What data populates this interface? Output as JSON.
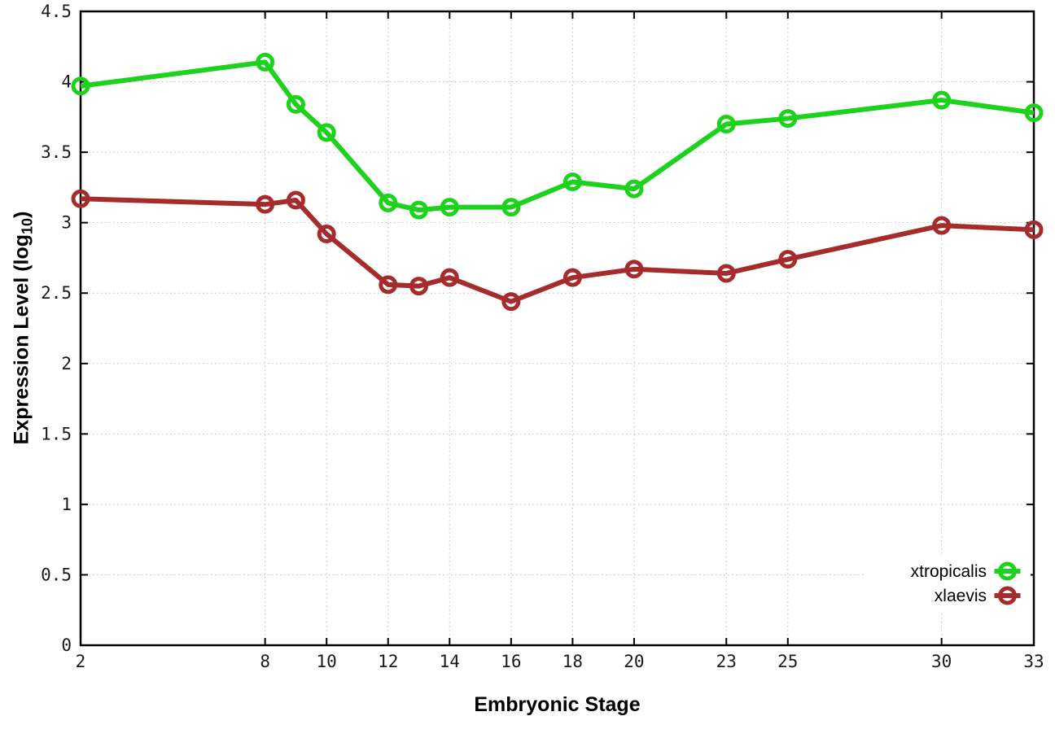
{
  "figure": {
    "xlabel": "Embryonic Stage",
    "ylabel_pre": "Expression Level (log",
    "ylabel_sub": "10",
    "ylabel_post": ")"
  },
  "chart_data": {
    "type": "line",
    "title": "",
    "xlabel": "Embryonic Stage",
    "ylabel": "Expression Level (log10)",
    "x": [
      2,
      8,
      9,
      10,
      12,
      13,
      14,
      16,
      18,
      20,
      23,
      25,
      30,
      33
    ],
    "xtick_labels": [
      2,
      8,
      10,
      12,
      14,
      16,
      18,
      20,
      23,
      25,
      30,
      33
    ],
    "xlim": [
      2,
      33
    ],
    "ylim": [
      0,
      4.5
    ],
    "ytick_step": 0.5,
    "grid": true,
    "grid_color": "#bdbdbd",
    "axis_color": "#000000",
    "legend_position": "bottom-right-inside",
    "series": [
      {
        "name": "xtropicalis",
        "color": "#1cd21c",
        "values": [
          3.97,
          4.14,
          3.84,
          3.64,
          3.14,
          3.09,
          3.11,
          3.11,
          3.29,
          3.24,
          3.7,
          3.74,
          3.87,
          3.78
        ]
      },
      {
        "name": "xlaevis",
        "color": "#a52c2c",
        "values": [
          3.17,
          3.13,
          3.16,
          2.92,
          2.56,
          2.55,
          2.61,
          2.44,
          2.61,
          2.67,
          2.64,
          2.74,
          2.98,
          2.95
        ]
      }
    ]
  }
}
